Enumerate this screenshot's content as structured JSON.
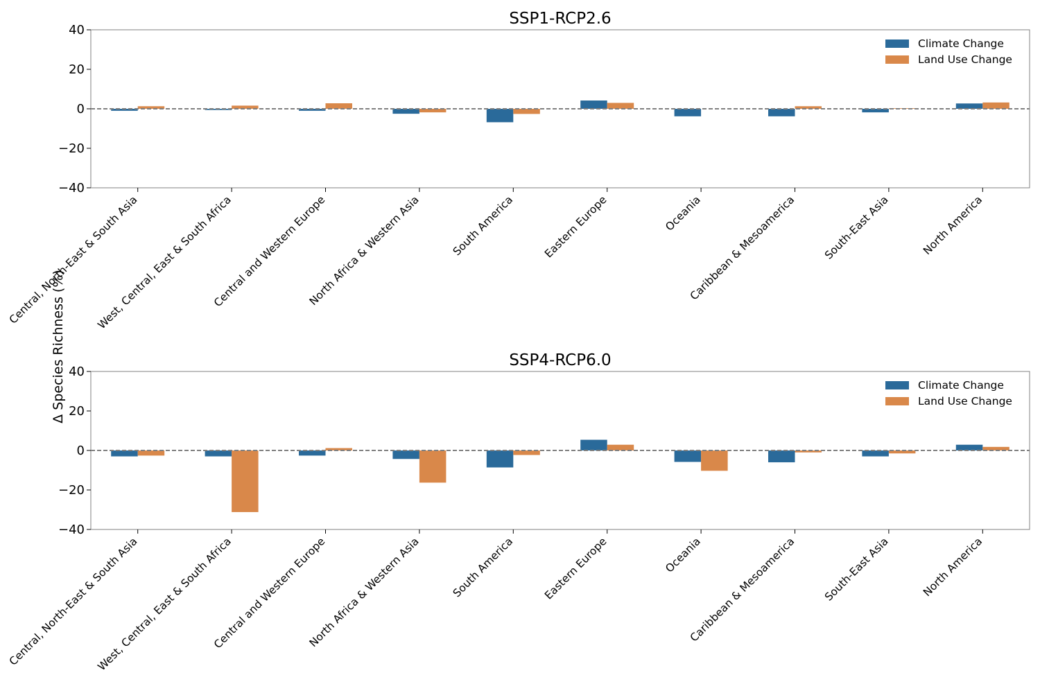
{
  "figure": {
    "ylabel": "Δ Species Richness (%)"
  },
  "colors": {
    "climate": "#2a6a9a",
    "landuse": "#d9884a",
    "zero_line": "#808080",
    "frame": "#808080"
  },
  "chart_data": [
    {
      "type": "bar",
      "title": "SSP1-RCP2.6",
      "ylim": [
        -40,
        40
      ],
      "yticks": [
        40,
        20,
        0,
        -20,
        -40
      ],
      "ytick_labels": [
        "40",
        "20",
        "0",
        "−20",
        "−40"
      ],
      "grid": false,
      "legend_position": "top-right",
      "categories": [
        "Central, North-East & South Asia",
        "West, Central, East & South Africa",
        "Central and Western Europe",
        "North Africa & Western Asia",
        "South America",
        "Eastern Europe",
        "Oceania",
        "Caribbean & Mesoamerica",
        "South-East Asia",
        "North America"
      ],
      "series": [
        {
          "name": "Climate Change",
          "values": [
            -1.0,
            -0.6,
            -1.0,
            -2.5,
            -6.8,
            4.2,
            -3.8,
            -3.8,
            -1.8,
            2.7
          ]
        },
        {
          "name": "Land Use Change",
          "values": [
            1.3,
            1.6,
            2.8,
            -1.8,
            -2.6,
            3.0,
            0.0,
            1.3,
            0.3,
            3.2
          ]
        }
      ]
    },
    {
      "type": "bar",
      "title": "SSP4-RCP6.0",
      "ylim": [
        -40,
        40
      ],
      "yticks": [
        40,
        20,
        0,
        -20,
        -40
      ],
      "ytick_labels": [
        "40",
        "20",
        "0",
        "−20",
        "−40"
      ],
      "grid": false,
      "legend_position": "top-right",
      "categories": [
        "Central, North-East & South Asia",
        "West, Central, East & South Africa",
        "Central and Western Europe",
        "North Africa & Western Asia",
        "South America",
        "Eastern Europe",
        "Oceania",
        "Caribbean & Mesoamerica",
        "South-East Asia",
        "North America"
      ],
      "series": [
        {
          "name": "Climate Change",
          "values": [
            -3.0,
            -3.0,
            -2.6,
            -4.3,
            -8.6,
            5.4,
            -5.8,
            -6.0,
            -3.0,
            2.9
          ]
        },
        {
          "name": "Land Use Change",
          "values": [
            -2.6,
            -31.2,
            1.2,
            -16.3,
            -2.3,
            2.9,
            -10.3,
            -1.0,
            -1.5,
            1.8
          ]
        }
      ]
    }
  ]
}
